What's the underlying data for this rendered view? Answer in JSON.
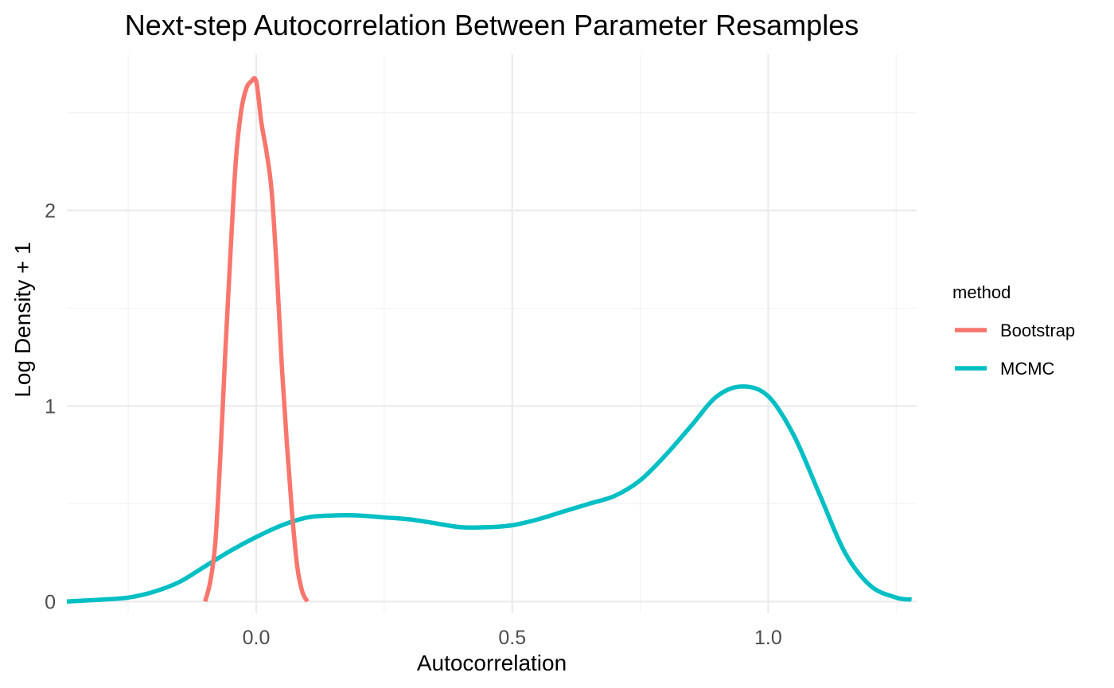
{
  "chart_data": {
    "type": "line",
    "title": "Next-step Autocorrelation Between Parameter Resamples",
    "xlabel": "Autocorrelation",
    "ylabel": "Log Density + 1",
    "xlim": [
      -0.37,
      1.29
    ],
    "ylim": [
      -0.06,
      2.8
    ],
    "x_ticks": [
      0.0,
      0.5,
      1.0
    ],
    "x_tick_labels": [
      "0.0",
      "0.5",
      "1.0"
    ],
    "y_ticks": [
      0,
      1,
      2
    ],
    "y_tick_labels": [
      "0",
      "1",
      "2"
    ],
    "grid": true,
    "legend": {
      "title": "method",
      "position": "right"
    },
    "series": [
      {
        "name": "Bootstrap",
        "color": "#F8766D",
        "x": [
          -0.1,
          -0.09,
          -0.08,
          -0.07,
          -0.06,
          -0.05,
          -0.04,
          -0.03,
          -0.02,
          -0.01,
          0.0,
          0.01,
          0.02,
          0.03,
          0.04,
          0.05,
          0.06,
          0.07,
          0.08,
          0.09,
          0.1
        ],
        "y": [
          0.0,
          0.1,
          0.3,
          0.75,
          1.3,
          1.8,
          2.25,
          2.5,
          2.62,
          2.66,
          2.66,
          2.45,
          2.3,
          2.1,
          1.7,
          1.2,
          0.8,
          0.45,
          0.18,
          0.05,
          0.0
        ]
      },
      {
        "name": "MCMC",
        "color": "#00BFC4",
        "x": [
          -0.37,
          -0.3,
          -0.25,
          -0.2,
          -0.15,
          -0.1,
          -0.05,
          0.0,
          0.05,
          0.1,
          0.15,
          0.2,
          0.25,
          0.3,
          0.35,
          0.4,
          0.45,
          0.5,
          0.55,
          0.6,
          0.65,
          0.7,
          0.75,
          0.8,
          0.85,
          0.9,
          0.95,
          1.0,
          1.05,
          1.1,
          1.15,
          1.2,
          1.25,
          1.28
        ],
        "y": [
          0.0,
          0.01,
          0.02,
          0.05,
          0.1,
          0.18,
          0.26,
          0.33,
          0.39,
          0.43,
          0.44,
          0.44,
          0.43,
          0.42,
          0.4,
          0.38,
          0.38,
          0.39,
          0.42,
          0.46,
          0.5,
          0.54,
          0.62,
          0.75,
          0.9,
          1.05,
          1.1,
          1.05,
          0.85,
          0.55,
          0.25,
          0.08,
          0.02,
          0.01
        ]
      }
    ]
  }
}
